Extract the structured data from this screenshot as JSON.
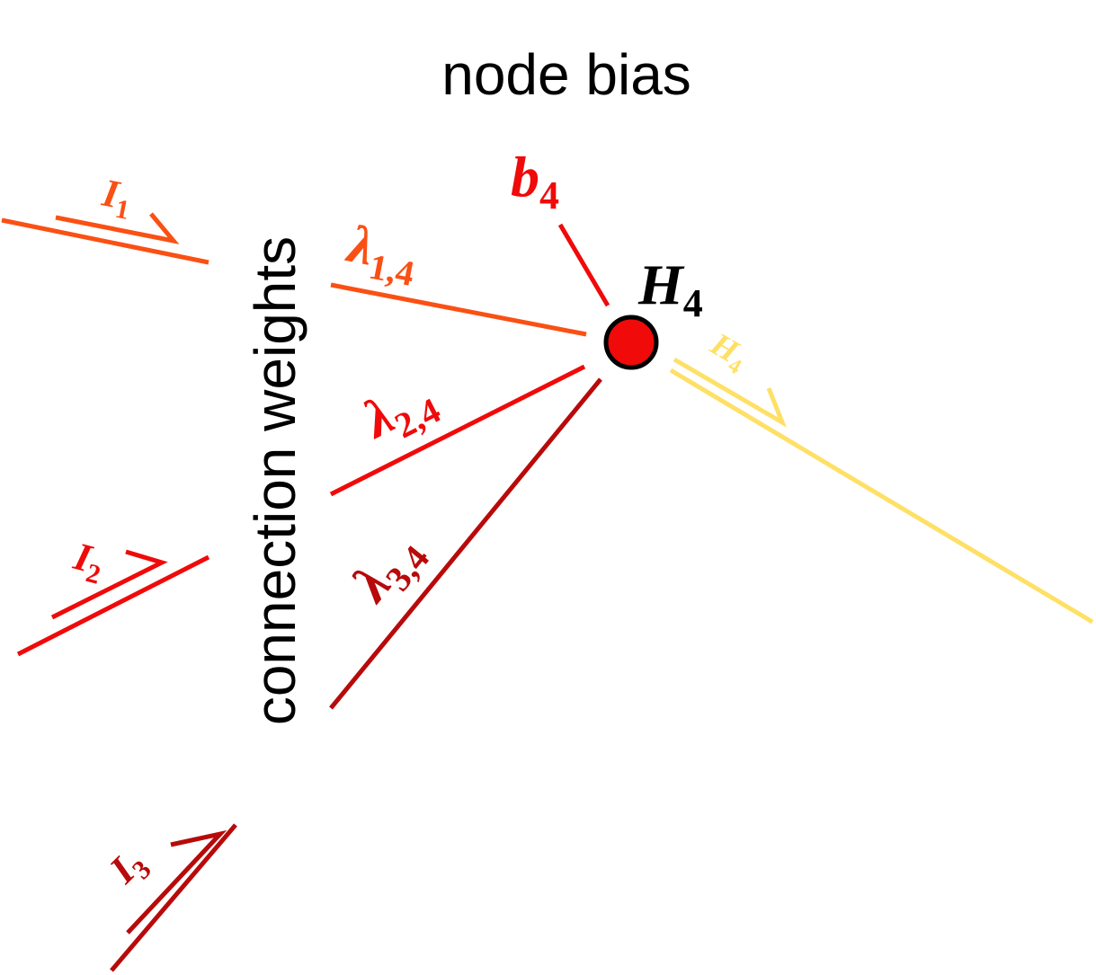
{
  "title": "node bias",
  "side_label": "connection weights",
  "colors": {
    "input_1": "#fa5014",
    "input_2": "#f00a0a",
    "input_3": "#b80a0a",
    "bias": "#f00a0a",
    "node_fill": "#f00a0a",
    "node_stroke": "#000000",
    "output": "#ffe066",
    "text": "#000000"
  },
  "inputs": [
    {
      "symbol": "I",
      "subscript": "1",
      "weight_symbol": "λ",
      "weight_subscript": "1,4"
    },
    {
      "symbol": "I",
      "subscript": "2",
      "weight_symbol": "λ",
      "weight_subscript": "2,4"
    },
    {
      "symbol": "I",
      "subscript": "3",
      "weight_symbol": "λ",
      "weight_subscript": "3,4"
    }
  ],
  "bias": {
    "symbol": "b",
    "subscript": "4"
  },
  "node": {
    "symbol": "H",
    "subscript": "4"
  },
  "output": {
    "symbol": "H",
    "subscript": "4"
  }
}
